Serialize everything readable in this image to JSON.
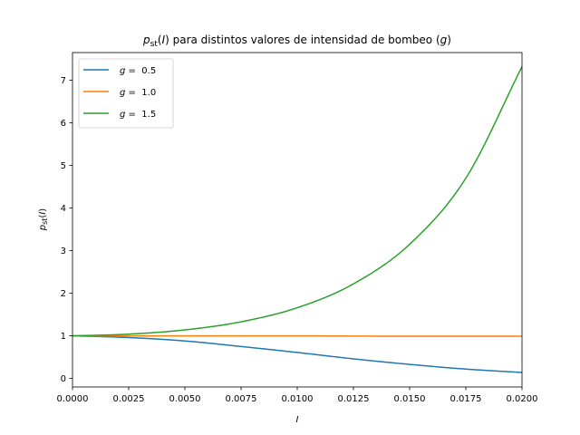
{
  "chart_data": {
    "type": "line",
    "title": "p_st(I) para distintos valores de intensidad de bombeo (g)",
    "title_parts": {
      "p": "p",
      "sub": "st",
      "i": "I",
      "main": " para distintos valores de intensidad de bombeo (",
      "g": "g",
      "close": ")"
    },
    "xlabel": "I",
    "ylabel": "p_st(I)",
    "ylabel_parts": {
      "p": "p",
      "sub": "st",
      "open": "(",
      "i": "I",
      "close": ")"
    },
    "xlim": [
      0.0,
      0.02
    ],
    "ylim": [
      -0.2,
      7.65
    ],
    "xticks": [
      0.0,
      0.0025,
      0.005,
      0.0075,
      0.01,
      0.0125,
      0.015,
      0.0175,
      0.02
    ],
    "xtick_labels": [
      "0.0000",
      "0.0025",
      "0.0050",
      "0.0075",
      "0.0100",
      "0.0125",
      "0.0150",
      "0.0175",
      "0.0200"
    ],
    "yticks": [
      0,
      1,
      2,
      3,
      4,
      5,
      6,
      7
    ],
    "ytick_labels": [
      "0",
      "1",
      "2",
      "3",
      "4",
      "5",
      "6",
      "7"
    ],
    "grid": false,
    "legend_position": "top-left",
    "x": [
      0.0,
      0.0025,
      0.005,
      0.0075,
      0.01,
      0.0125,
      0.015,
      0.0175,
      0.02
    ],
    "series": [
      {
        "name": "g =  0.5",
        "g": "g",
        "eq": " =  0.5",
        "color": "#1f77b4",
        "values": [
          1.0,
          0.96,
          0.88,
          0.75,
          0.61,
          0.46,
          0.33,
          0.22,
          0.14
        ]
      },
      {
        "name": "g =  1.0",
        "g": "g",
        "eq": " =  1.0",
        "color": "#ff7f0e",
        "values": [
          1.0,
          1.0,
          1.0,
          1.0,
          1.0,
          0.995,
          0.99,
          0.99,
          0.99
        ]
      },
      {
        "name": "g =  1.5",
        "g": "g",
        "eq": " =  1.5",
        "color": "#2ca02c",
        "values": [
          1.0,
          1.04,
          1.14,
          1.33,
          1.66,
          2.22,
          3.15,
          4.7,
          7.32
        ]
      }
    ]
  }
}
